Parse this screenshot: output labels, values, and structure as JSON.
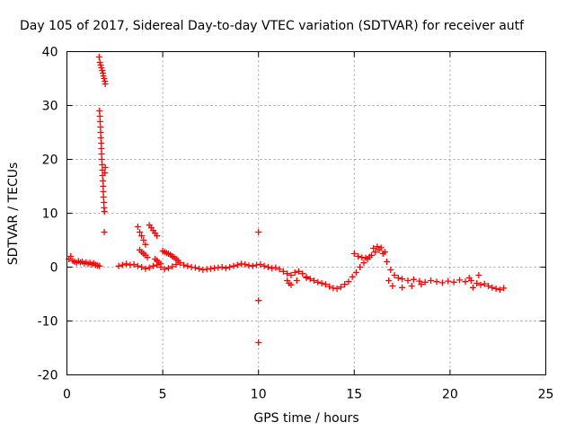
{
  "chart_data": {
    "type": "scatter",
    "title": "Day 105 of 2017, Sidereal Day-to-day VTEC variation (SDTVAR) for receiver autf",
    "xlabel": "GPS time / hours",
    "ylabel": "SDTVAR / TECUs",
    "xlim": [
      0,
      25
    ],
    "ylim": [
      -20,
      40
    ],
    "xticks": [
      "0",
      "5",
      "10",
      "15",
      "20",
      "25"
    ],
    "yticks": [
      "-20",
      "-10",
      "0",
      "10",
      "20",
      "30",
      "40"
    ],
    "grid": true,
    "marker": "+",
    "series": [
      {
        "name": "SDTVAR",
        "color": "#ff0000",
        "points": [
          [
            0.1,
            1.5
          ],
          [
            0.2,
            2.0
          ],
          [
            0.3,
            1.2
          ],
          [
            0.4,
            1.0
          ],
          [
            0.5,
            0.8
          ],
          [
            0.6,
            1.1
          ],
          [
            0.7,
            0.9
          ],
          [
            0.8,
            1.0
          ],
          [
            0.9,
            0.7
          ],
          [
            1.0,
            0.9
          ],
          [
            1.1,
            0.6
          ],
          [
            1.2,
            0.8
          ],
          [
            1.3,
            0.5
          ],
          [
            1.4,
            0.7
          ],
          [
            1.5,
            0.4
          ],
          [
            1.6,
            0.3
          ],
          [
            1.7,
            0.2
          ],
          [
            1.68,
            39
          ],
          [
            1.72,
            38
          ],
          [
            1.76,
            37.5
          ],
          [
            1.8,
            37
          ],
          [
            1.84,
            36.5
          ],
          [
            1.88,
            36
          ],
          [
            1.9,
            35.5
          ],
          [
            1.94,
            35
          ],
          [
            1.98,
            34.5
          ],
          [
            2.0,
            34
          ],
          [
            1.7,
            29
          ],
          [
            1.72,
            28
          ],
          [
            1.73,
            27
          ],
          [
            1.75,
            26
          ],
          [
            1.76,
            25
          ],
          [
            1.77,
            24
          ],
          [
            1.79,
            23
          ],
          [
            1.8,
            22
          ],
          [
            1.81,
            21
          ],
          [
            1.82,
            20
          ],
          [
            1.84,
            19
          ],
          [
            1.85,
            18
          ],
          [
            1.86,
            17
          ],
          [
            1.88,
            16
          ],
          [
            1.89,
            15
          ],
          [
            1.9,
            14
          ],
          [
            1.91,
            13
          ],
          [
            1.93,
            12
          ],
          [
            1.94,
            11
          ],
          [
            1.96,
            10.3
          ],
          [
            1.98,
            17.5
          ],
          [
            2.0,
            18.5
          ],
          [
            1.95,
            6.5
          ],
          [
            2.7,
            0.2
          ],
          [
            2.9,
            0.4
          ],
          [
            3.1,
            0.6
          ],
          [
            3.3,
            0.4
          ],
          [
            3.5,
            0.5
          ],
          [
            3.7,
            0.2
          ],
          [
            3.9,
            0.0
          ],
          [
            4.1,
            -0.3
          ],
          [
            4.3,
            -0.1
          ],
          [
            4.5,
            0.2
          ],
          [
            4.7,
            0.4
          ],
          [
            4.9,
            0.0
          ],
          [
            5.1,
            -0.4
          ],
          [
            5.3,
            -0.2
          ],
          [
            5.5,
            0.1
          ],
          [
            5.7,
            0.5
          ],
          [
            5.9,
            0.8
          ],
          [
            6.1,
            0.4
          ],
          [
            6.3,
            0.2
          ],
          [
            6.5,
            0.0
          ],
          [
            6.7,
            -0.1
          ],
          [
            6.9,
            -0.3
          ],
          [
            7.1,
            -0.5
          ],
          [
            7.3,
            -0.4
          ],
          [
            7.5,
            -0.3
          ],
          [
            7.7,
            -0.2
          ],
          [
            7.9,
            -0.1
          ],
          [
            8.1,
            0.0
          ],
          [
            8.3,
            -0.2
          ],
          [
            8.5,
            0.0
          ],
          [
            8.7,
            0.2
          ],
          [
            8.9,
            0.4
          ],
          [
            9.1,
            0.6
          ],
          [
            9.3,
            0.5
          ],
          [
            9.5,
            0.3
          ],
          [
            9.7,
            0.2
          ],
          [
            9.9,
            0.4
          ],
          [
            10.1,
            0.5
          ],
          [
            3.7,
            7.5
          ],
          [
            3.8,
            6.5
          ],
          [
            3.9,
            5.8
          ],
          [
            4.0,
            5.0
          ],
          [
            4.1,
            4.2
          ],
          [
            4.3,
            7.8
          ],
          [
            4.4,
            7.3
          ],
          [
            4.5,
            6.8
          ],
          [
            4.6,
            6.3
          ],
          [
            4.7,
            5.8
          ],
          [
            3.8,
            3.2
          ],
          [
            3.9,
            2.8
          ],
          [
            4.0,
            2.5
          ],
          [
            4.1,
            2.2
          ],
          [
            4.2,
            1.8
          ],
          [
            4.6,
            1.5
          ],
          [
            4.7,
            1.2
          ],
          [
            4.8,
            0.9
          ],
          [
            4.9,
            0.6
          ],
          [
            5.0,
            3.0
          ],
          [
            5.1,
            2.8
          ],
          [
            5.2,
            2.6
          ],
          [
            5.3,
            2.5
          ],
          [
            5.4,
            2.3
          ],
          [
            5.5,
            2.0
          ],
          [
            5.6,
            1.8
          ],
          [
            5.7,
            1.5
          ],
          [
            5.8,
            1.2
          ],
          [
            10.0,
            6.5
          ],
          [
            10.0,
            -6.2
          ],
          [
            10.0,
            -14.0
          ],
          [
            10.3,
            0.2
          ],
          [
            10.5,
            0.0
          ],
          [
            10.7,
            -0.2
          ],
          [
            10.9,
            -0.1
          ],
          [
            11.1,
            -0.4
          ],
          [
            11.3,
            -0.8
          ],
          [
            11.5,
            -1.2
          ],
          [
            11.7,
            -1.5
          ],
          [
            11.9,
            -1.0
          ],
          [
            12.1,
            -0.8
          ],
          [
            12.3,
            -1.2
          ],
          [
            12.5,
            -1.8
          ],
          [
            12.7,
            -2.2
          ],
          [
            12.9,
            -2.5
          ],
          [
            13.1,
            -2.8
          ],
          [
            13.3,
            -3.0
          ],
          [
            13.5,
            -3.2
          ],
          [
            13.7,
            -3.6
          ],
          [
            13.9,
            -3.9
          ],
          [
            14.1,
            -4.0
          ],
          [
            14.3,
            -3.7
          ],
          [
            14.5,
            -3.2
          ],
          [
            14.7,
            -2.7
          ],
          [
            14.9,
            -1.8
          ],
          [
            15.1,
            -1.0
          ],
          [
            15.3,
            0.0
          ],
          [
            15.5,
            0.8
          ],
          [
            15.7,
            1.5
          ],
          [
            15.9,
            2.2
          ],
          [
            16.1,
            2.8
          ],
          [
            16.3,
            3.2
          ],
          [
            16.5,
            2.5
          ],
          [
            16.7,
            1.0
          ],
          [
            16.9,
            -0.5
          ],
          [
            17.1,
            -1.5
          ],
          [
            17.3,
            -2.0
          ],
          [
            11.5,
            -2.5
          ],
          [
            11.6,
            -3.0
          ],
          [
            11.7,
            -3.3
          ],
          [
            12.0,
            -2.5
          ],
          [
            12.5,
            -2.0
          ],
          [
            15.0,
            2.5
          ],
          [
            15.2,
            2.0
          ],
          [
            15.4,
            1.8
          ],
          [
            15.6,
            1.7
          ],
          [
            15.8,
            1.9
          ],
          [
            16.0,
            3.5
          ],
          [
            16.2,
            3.8
          ],
          [
            16.4,
            3.6
          ],
          [
            16.6,
            2.8
          ],
          [
            16.8,
            -2.5
          ],
          [
            17.0,
            -3.5
          ],
          [
            17.5,
            -3.8
          ],
          [
            18.0,
            -3.5
          ],
          [
            18.5,
            -3.2
          ],
          [
            17.5,
            -2.2
          ],
          [
            17.8,
            -2.5
          ],
          [
            18.1,
            -2.3
          ],
          [
            18.4,
            -2.6
          ],
          [
            18.7,
            -2.8
          ],
          [
            19.0,
            -2.5
          ],
          [
            19.3,
            -2.7
          ],
          [
            19.6,
            -2.9
          ],
          [
            19.9,
            -2.6
          ],
          [
            20.2,
            -2.8
          ],
          [
            20.5,
            -2.4
          ],
          [
            20.8,
            -2.7
          ],
          [
            21.1,
            -2.5
          ],
          [
            21.4,
            -3.0
          ],
          [
            21.6,
            -3.3
          ],
          [
            21.8,
            -3.1
          ],
          [
            22.0,
            -3.5
          ],
          [
            22.2,
            -3.8
          ],
          [
            22.4,
            -4.0
          ],
          [
            22.6,
            -4.2
          ],
          [
            22.8,
            -3.9
          ],
          [
            21.0,
            -2.0
          ],
          [
            21.2,
            -3.8
          ],
          [
            21.5,
            -1.5
          ]
        ]
      }
    ]
  }
}
